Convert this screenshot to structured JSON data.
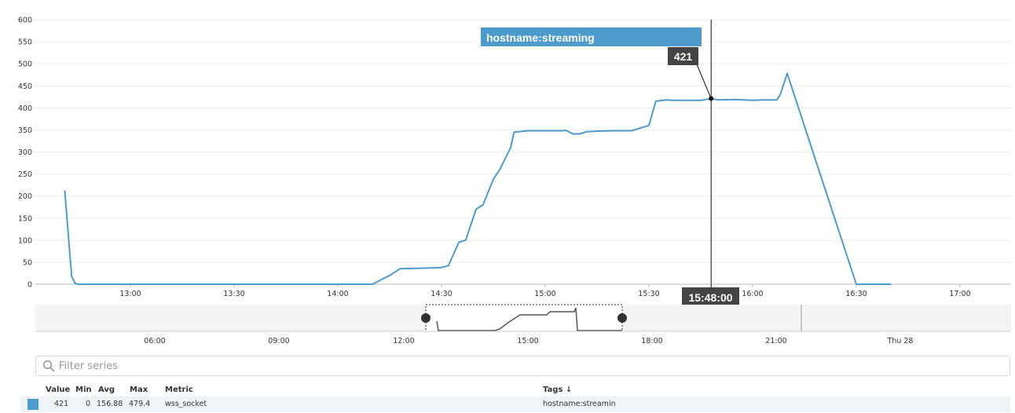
{
  "chart_data": {
    "type": "line",
    "y_ticks": [
      "600",
      "550",
      "500",
      "450",
      "400",
      "350",
      "300",
      "250",
      "200",
      "150",
      "100",
      "50",
      "0"
    ],
    "ylim": [
      0,
      600
    ],
    "x_ticks": [
      "13:00",
      "13:30",
      "14:00",
      "14:30",
      "15:00",
      "15:30",
      "16:00",
      "16:30",
      "17:00"
    ],
    "grid": true,
    "color": "#4d9acd",
    "series": [
      {
        "name": "hostname:streaming",
        "x": [
          "12:41",
          "12:43",
          "12:44",
          "12:45",
          "14:00",
          "14:10",
          "14:15",
          "14:18",
          "14:27",
          "14:30",
          "14:32",
          "14:35",
          "14:37",
          "14:40",
          "14:42",
          "14:45",
          "14:47",
          "14:50",
          "14:51",
          "14:55",
          "15:00",
          "15:05",
          "15:06",
          "15:08",
          "15:10",
          "15:12",
          "15:15",
          "15:20",
          "15:25",
          "15:30",
          "15:32",
          "15:35",
          "15:37",
          "15:40",
          "15:45",
          "15:48",
          "15:50",
          "15:55",
          "16:00",
          "16:03",
          "16:05",
          "16:07",
          "16:08",
          "16:10",
          "16:30",
          "16:40"
        ],
        "y": [
          213,
          18,
          2,
          0,
          0,
          0,
          20,
          35,
          37,
          38,
          42,
          95,
          100,
          170,
          180,
          238,
          262,
          310,
          345,
          348,
          348,
          348,
          349,
          341,
          341,
          346,
          347,
          348,
          348,
          360,
          415,
          418,
          417,
          417,
          417,
          421,
          418,
          419,
          417,
          418,
          418,
          418,
          430,
          478,
          0,
          0
        ]
      }
    ],
    "tooltip": {
      "series": "hostname:streaming",
      "value": "421",
      "time": "15:48:00"
    },
    "navigator": {
      "x_ticks": [
        "06:00",
        "09:00",
        "12:00",
        "15:00",
        "18:00",
        "21:00",
        "Thu 28"
      ]
    }
  },
  "filter": {
    "placeholder": "Filter series"
  },
  "legend_table": {
    "headers": {
      "value": "Value",
      "min": "Min",
      "avg": "Avg",
      "max": "Max",
      "metric": "Metric",
      "tags": "Tags ↓"
    },
    "rows": [
      {
        "value": "421",
        "min": "0",
        "avg": "156.88",
        "max": "479.4",
        "metric": "wss_socket",
        "tags": "hostname:streaming"
      }
    ]
  }
}
